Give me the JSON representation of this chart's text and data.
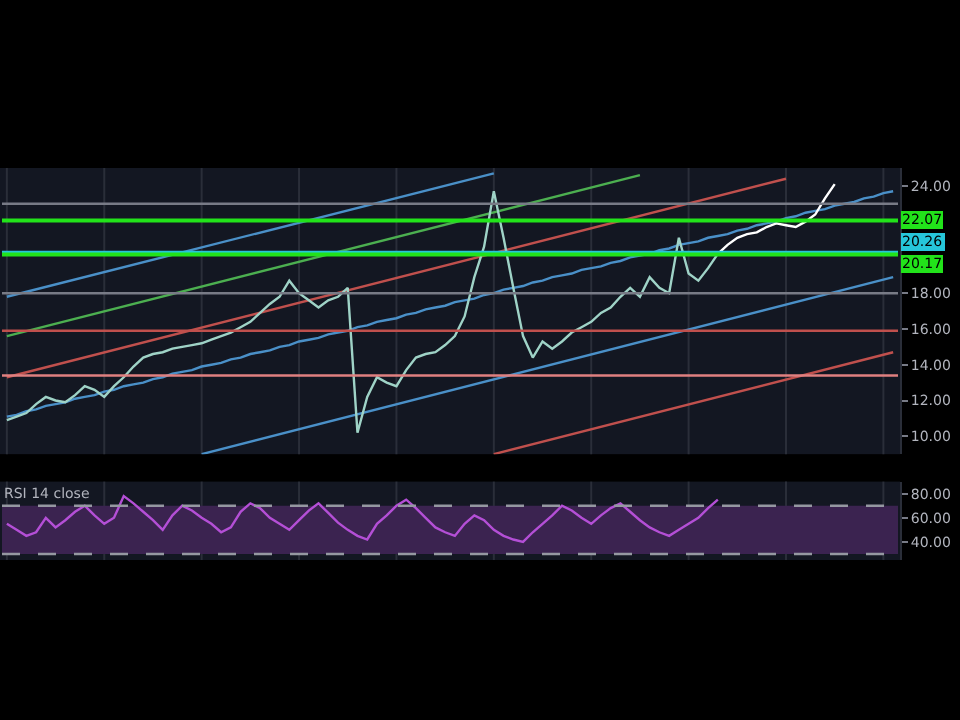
{
  "chart_data": [
    {
      "type": "line",
      "categories": [
        null,
        null,
        null,
        null,
        null,
        null,
        null,
        null,
        null,
        null,
        null,
        null,
        null,
        null,
        null,
        null,
        null,
        null,
        null,
        null,
        null,
        null,
        null,
        null,
        null,
        null,
        null,
        null,
        null,
        null,
        null,
        null,
        null,
        null,
        null,
        null,
        null,
        null,
        null,
        null,
        null,
        null,
        null,
        null,
        null,
        null,
        null,
        null,
        null,
        null,
        null,
        null,
        null,
        null,
        null,
        null,
        null,
        null,
        null,
        null,
        null,
        null,
        null,
        null,
        null,
        null,
        null,
        null,
        null,
        null,
        null,
        null,
        null,
        null,
        null,
        null,
        null,
        null,
        null,
        null,
        null,
        null,
        null,
        null,
        null,
        null,
        null,
        null,
        null,
        null,
        null,
        null
      ],
      "ylim": [
        9,
        25
      ],
      "yticks": [
        {
          "value": 10,
          "label": "10.00"
        },
        {
          "value": 12,
          "label": "12.00"
        },
        {
          "value": 14,
          "label": "14.00"
        },
        {
          "value": 16,
          "label": "16.00"
        },
        {
          "value": 18,
          "label": "18.00"
        },
        {
          "value": 24,
          "label": "24.00"
        }
      ],
      "tick_labels": "y",
      "grid": "x",
      "series": [
        {
          "color": "#4a90c8",
          "values": [
            17.8,
            null,
            null,
            null,
            null,
            null,
            null,
            null,
            null,
            null,
            null,
            null,
            null,
            null,
            null,
            null,
            null,
            null,
            null,
            null,
            null,
            null,
            null,
            null,
            null,
            null,
            null,
            null,
            null,
            null,
            null,
            null,
            null,
            null,
            null,
            null,
            null,
            null,
            null,
            null,
            null,
            null,
            null,
            null,
            null,
            null,
            null,
            null,
            null,
            null,
            24.7,
            null,
            null,
            null,
            null,
            null,
            null,
            null,
            null,
            null,
            null,
            null,
            null,
            null,
            null,
            null,
            null,
            null,
            null,
            null,
            null,
            null,
            null,
            null,
            null,
            null,
            null,
            null,
            null,
            null,
            null,
            null,
            null,
            null,
            null,
            null,
            null,
            null,
            null,
            null,
            null,
            null
          ]
        },
        {
          "color": "#4caf50",
          "values": [
            15.6,
            null,
            null,
            null,
            null,
            null,
            null,
            null,
            null,
            null,
            null,
            null,
            null,
            null,
            null,
            null,
            null,
            null,
            null,
            null,
            null,
            null,
            null,
            null,
            null,
            null,
            null,
            null,
            null,
            null,
            null,
            null,
            null,
            null,
            null,
            null,
            null,
            null,
            null,
            null,
            null,
            null,
            null,
            null,
            null,
            null,
            null,
            null,
            null,
            null,
            null,
            null,
            null,
            null,
            null,
            null,
            null,
            null,
            null,
            null,
            null,
            null,
            null,
            null,
            null,
            24.6,
            null,
            null,
            null,
            null,
            null,
            null,
            null,
            null,
            null,
            null,
            null,
            null,
            null,
            null,
            null,
            null,
            null,
            null,
            null,
            null,
            null,
            null,
            null,
            null,
            null,
            null
          ]
        },
        {
          "color": "#c0504d",
          "values": [
            13.3,
            null,
            null,
            null,
            null,
            null,
            null,
            null,
            null,
            null,
            null,
            null,
            null,
            null,
            null,
            null,
            null,
            null,
            null,
            null,
            null,
            null,
            null,
            null,
            null,
            null,
            null,
            null,
            null,
            null,
            null,
            null,
            null,
            null,
            null,
            null,
            null,
            null,
            null,
            null,
            null,
            null,
            null,
            null,
            null,
            null,
            null,
            null,
            null,
            null,
            null,
            null,
            null,
            null,
            null,
            null,
            null,
            null,
            null,
            null,
            null,
            null,
            null,
            null,
            null,
            null,
            null,
            null,
            null,
            null,
            null,
            null,
            null,
            null,
            null,
            null,
            null,
            null,
            null,
            null,
            24.4,
            null,
            null,
            null,
            null,
            null,
            null,
            null,
            null,
            null,
            null,
            null
          ]
        },
        {
          "color": "#4a90c8",
          "values": [
            11.1,
            11.2,
            11.4,
            11.5,
            11.7,
            11.8,
            11.9,
            12.1,
            12.2,
            12.3,
            12.5,
            12.6,
            12.8,
            12.9,
            13.0,
            13.2,
            13.3,
            13.5,
            13.6,
            13.7,
            13.9,
            14.0,
            14.1,
            14.3,
            14.4,
            14.6,
            14.7,
            14.8,
            15.0,
            15.1,
            15.3,
            15.4,
            15.5,
            15.7,
            15.8,
            15.9,
            16.1,
            16.2,
            16.4,
            16.5,
            16.6,
            16.8,
            16.9,
            17.1,
            17.2,
            17.3,
            17.5,
            17.6,
            17.7,
            17.9,
            18.0,
            18.2,
            18.3,
            18.4,
            18.6,
            18.7,
            18.9,
            19.0,
            19.1,
            19.3,
            19.4,
            19.5,
            19.7,
            19.8,
            20.0,
            20.1,
            20.2,
            20.4,
            20.5,
            20.7,
            20.8,
            20.9,
            21.1,
            21.2,
            21.3,
            21.5,
            21.6,
            21.8,
            21.9,
            22.0,
            22.2,
            22.3,
            22.5,
            22.6,
            22.7,
            22.9,
            23.0,
            23.1,
            23.3,
            23.4,
            23.6,
            23.7
          ]
        },
        {
          "color": "#4a90c8",
          "values": [
            null,
            null,
            null,
            null,
            null,
            null,
            null,
            null,
            null,
            null,
            null,
            null,
            null,
            null,
            null,
            null,
            null,
            null,
            null,
            null,
            9.0,
            null,
            null,
            null,
            null,
            null,
            null,
            null,
            null,
            null,
            null,
            null,
            null,
            null,
            null,
            null,
            null,
            null,
            null,
            null,
            null,
            null,
            null,
            null,
            null,
            null,
            null,
            null,
            null,
            null,
            null,
            null,
            null,
            null,
            null,
            null,
            null,
            null,
            null,
            null,
            null,
            null,
            null,
            null,
            null,
            null,
            null,
            null,
            null,
            null,
            null,
            null,
            null,
            null,
            null,
            null,
            null,
            null,
            null,
            null,
            null,
            null,
            null,
            null,
            null,
            null,
            null,
            null,
            null,
            null,
            null,
            18.9
          ]
        },
        {
          "color": "#c0504d",
          "values": [
            null,
            null,
            null,
            null,
            null,
            null,
            null,
            null,
            null,
            null,
            null,
            null,
            null,
            null,
            null,
            null,
            null,
            null,
            null,
            null,
            null,
            null,
            null,
            null,
            null,
            null,
            null,
            null,
            null,
            null,
            null,
            null,
            null,
            null,
            null,
            null,
            null,
            null,
            null,
            null,
            null,
            null,
            null,
            null,
            null,
            null,
            null,
            null,
            null,
            null,
            9.0,
            null,
            null,
            null,
            null,
            null,
            null,
            null,
            null,
            null,
            null,
            null,
            null,
            null,
            null,
            null,
            null,
            null,
            null,
            null,
            null,
            null,
            null,
            null,
            null,
            null,
            null,
            null,
            null,
            null,
            null,
            null,
            null,
            null,
            null,
            null,
            null,
            null,
            null,
            null,
            null,
            14.7
          ]
        },
        {
          "color": "#9fd3c7",
          "values": [
            10.9,
            11.1,
            11.3,
            11.8,
            12.2,
            12.0,
            11.9,
            12.3,
            12.8,
            12.6,
            12.2,
            12.8,
            13.3,
            13.9,
            14.4,
            14.6,
            14.7,
            14.9,
            15.0,
            15.1,
            15.2,
            15.4,
            15.6,
            15.8,
            16.1,
            16.4,
            16.9,
            17.4,
            17.8,
            18.7,
            18.0,
            17.6,
            17.2,
            17.6,
            17.8,
            18.3,
            10.2,
            12.2,
            13.3,
            13.0,
            12.8,
            13.7,
            14.4,
            14.6,
            14.7,
            15.1,
            15.6,
            16.7,
            18.9,
            20.6,
            23.7,
            21.1,
            18.3,
            15.6,
            14.4,
            15.3,
            14.9,
            15.3,
            15.8,
            16.1,
            16.4,
            16.9,
            17.2,
            17.8,
            18.3,
            17.8,
            18.9,
            18.3,
            18.0,
            21.1,
            19.1,
            18.7,
            19.4,
            20.2,
            null,
            null,
            null,
            null,
            null,
            null,
            null,
            null,
            null,
            null,
            null,
            null,
            null,
            null,
            null,
            null,
            null,
            null
          ]
        },
        {
          "color": "#ffffff",
          "values": [
            null,
            null,
            null,
            null,
            null,
            null,
            null,
            null,
            null,
            null,
            null,
            null,
            null,
            null,
            null,
            null,
            null,
            null,
            null,
            null,
            null,
            null,
            null,
            null,
            null,
            null,
            null,
            null,
            null,
            null,
            null,
            null,
            null,
            null,
            null,
            null,
            null,
            null,
            null,
            null,
            null,
            null,
            null,
            null,
            null,
            null,
            null,
            null,
            null,
            null,
            null,
            null,
            null,
            null,
            null,
            null,
            null,
            null,
            null,
            null,
            null,
            null,
            null,
            null,
            null,
            null,
            null,
            null,
            null,
            null,
            null,
            null,
            null,
            20.2,
            20.7,
            21.1,
            21.3,
            21.4,
            21.7,
            21.9,
            21.8,
            21.7,
            22.0,
            22.4,
            23.3,
            24.1,
            null,
            null,
            null,
            null,
            null,
            null
          ]
        }
      ],
      "ref_lines": [
        {
          "axis": "y",
          "value": 23.0,
          "color": "#787b86"
        },
        {
          "axis": "y",
          "value": 22.07,
          "label": "22.07",
          "color": "#22e31a"
        },
        {
          "axis": "y",
          "value": 20.26,
          "label": "20.26",
          "color": "#26c6da"
        },
        {
          "axis": "y",
          "value": 20.17,
          "label": "20.17",
          "color": "#22e31a"
        },
        {
          "axis": "y",
          "value": 18.0,
          "color": "#787b86"
        },
        {
          "axis": "y",
          "value": 15.9,
          "color": "#c0504d"
        },
        {
          "axis": "y",
          "value": 13.4,
          "color": "#e08080"
        }
      ]
    },
    {
      "type": "line",
      "categories": [
        null,
        null,
        null,
        null,
        null,
        null,
        null,
        null,
        null,
        null,
        null,
        null,
        null,
        null,
        null,
        null,
        null,
        null,
        null,
        null,
        null,
        null,
        null,
        null,
        null,
        null,
        null,
        null,
        null,
        null,
        null,
        null,
        null,
        null,
        null,
        null,
        null,
        null,
        null,
        null,
        null,
        null,
        null,
        null,
        null,
        null,
        null,
        null,
        null,
        null,
        null,
        null,
        null,
        null,
        null,
        null,
        null,
        null,
        null,
        null,
        null,
        null,
        null,
        null,
        null,
        null,
        null,
        null,
        null,
        null,
        null,
        null,
        null,
        null,
        null,
        null,
        null,
        null,
        null,
        null,
        null,
        null,
        null,
        null,
        null,
        null,
        null,
        null,
        null,
        null,
        null,
        null
      ],
      "annotations": [
        "RSI 14 close"
      ],
      "ylim": [
        25,
        90
      ],
      "yticks": [
        {
          "value": 40,
          "label": "40.00"
        },
        {
          "value": 60,
          "label": "60.00"
        },
        {
          "value": 80,
          "label": "80.00"
        }
      ],
      "tick_labels": "y",
      "grid": "x",
      "series": [
        {
          "color": "#b44fd6",
          "values": [
            55,
            50,
            45,
            48,
            60,
            52,
            58,
            65,
            70,
            62,
            55,
            60,
            78,
            72,
            65,
            58,
            50,
            62,
            70,
            66,
            60,
            55,
            48,
            52,
            65,
            72,
            68,
            60,
            55,
            50,
            58,
            66,
            72,
            64,
            56,
            50,
            45,
            42,
            55,
            62,
            70,
            75,
            68,
            60,
            52,
            48,
            45,
            55,
            62,
            58,
            50,
            45,
            42,
            40,
            48,
            55,
            62,
            70,
            66,
            60,
            55,
            62,
            68,
            72,
            65,
            58,
            52,
            48,
            45,
            50,
            55,
            60,
            68,
            75,
            null,
            null,
            null,
            null,
            null,
            null,
            null,
            null,
            null,
            null,
            null,
            null,
            null,
            null,
            null,
            null,
            null,
            null
          ]
        }
      ],
      "ref_lines": [
        {
          "axis": "y",
          "value": 70,
          "color": "#9598a1",
          "line_style": "dashed"
        },
        {
          "axis": "y",
          "value": 30,
          "color": "#9598a1",
          "line_style": "dashed"
        }
      ],
      "bands": [
        {
          "axis": "y",
          "from": 30,
          "to": 70,
          "color": "#3b2350"
        }
      ]
    }
  ]
}
